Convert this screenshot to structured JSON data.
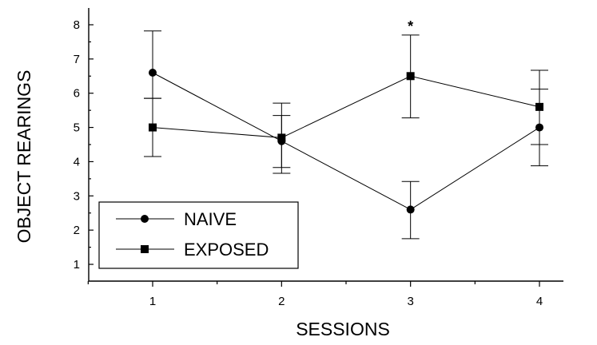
{
  "chart_data": {
    "type": "line",
    "xlabel": "SESSIONS",
    "ylabel": "OBJECT REARINGS",
    "x": [
      1,
      2,
      3,
      4
    ],
    "xlim": [
      0.5,
      4.9
    ],
    "ylim": [
      0.5,
      8.5
    ],
    "yticks": [
      1,
      2,
      3,
      4,
      5,
      6,
      7,
      8
    ],
    "xticks": [
      1,
      2,
      3,
      4
    ],
    "series": [
      {
        "name": "NAIVE",
        "marker": "circle",
        "values": [
          6.6,
          4.6,
          2.6,
          5.0
        ],
        "error_upper": [
          7.82,
          5.35,
          3.42,
          6.12
        ],
        "error_lower": [
          5.85,
          3.83,
          1.75,
          3.88
        ]
      },
      {
        "name": "EXPOSED",
        "marker": "square",
        "values": [
          5.0,
          4.7,
          6.5,
          5.6
        ],
        "error_upper": [
          5.85,
          5.71,
          7.7,
          6.67
        ],
        "error_lower": [
          4.15,
          3.66,
          5.28,
          4.5
        ]
      }
    ],
    "annotations": [
      {
        "text": "*",
        "x": 3,
        "y": 8.0
      }
    ],
    "legend": {
      "position": "bottom-left",
      "entries": [
        "NAIVE",
        "EXPOSED"
      ]
    },
    "grid": false
  }
}
